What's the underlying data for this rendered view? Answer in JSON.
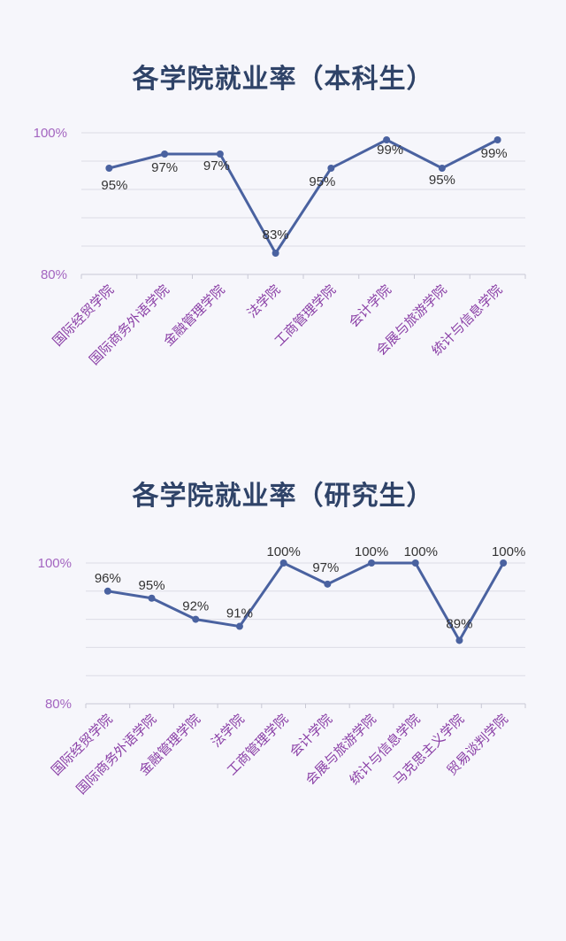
{
  "chart_data": [
    {
      "type": "line",
      "title": "各学院就业率（本科生）",
      "categories": [
        "国际经贸学院",
        "国际商务外语学院",
        "金融管理学院",
        "法学院",
        "工商管理学院",
        "会计学院",
        "会展与旅游学院",
        "统计与信息学院"
      ],
      "values": [
        95,
        97,
        97,
        83,
        95,
        99,
        95,
        99
      ],
      "data_labels": [
        "95%",
        "97%",
        "97%",
        "83%",
        "95%",
        "99%",
        "95%",
        "99%"
      ],
      "y_ticks": [
        "100%",
        "80%"
      ],
      "ylim": [
        80,
        100
      ],
      "xlabel": "",
      "ylabel": "",
      "grid": true,
      "line_color": "#4a62a0",
      "tick_color": "#a365c0",
      "category_color": "#8a3fa6"
    },
    {
      "type": "line",
      "title": "各学院就业率（研究生）",
      "categories": [
        "国际经贸学院",
        "国际商务外语学院",
        "金融管理学院",
        "法学院",
        "工商管理学院",
        "会计学院",
        "会展与旅游学院",
        "统计与信息学院",
        "马克思主义学院",
        "贸易谈判学院"
      ],
      "values": [
        96,
        95,
        92,
        91,
        100,
        97,
        100,
        100,
        89,
        100
      ],
      "data_labels": [
        "96%",
        "95%",
        "92%",
        "91%",
        "100%",
        "97%",
        "100%",
        "100%",
        "89%",
        "100%"
      ],
      "y_ticks": [
        "100%",
        "80%"
      ],
      "ylim": [
        80,
        100
      ],
      "xlabel": "",
      "ylabel": "",
      "grid": true,
      "line_color": "#4a62a0",
      "tick_color": "#a365c0",
      "category_color": "#8a3fa6"
    }
  ]
}
